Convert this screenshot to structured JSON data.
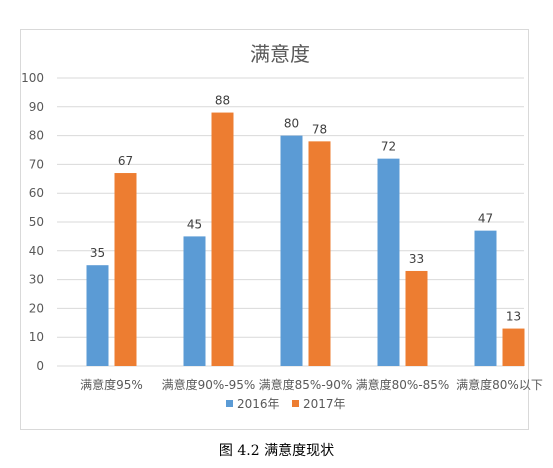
{
  "caption": "图 4.2 满意度现状",
  "colors": {
    "series_2016": "#5b9bd5",
    "series_2017": "#ed7d31",
    "grid": "#d9d9d9",
    "text": "#595959"
  },
  "chart_data": {
    "type": "bar",
    "title": "满意度",
    "categories": [
      "满意度95%",
      "满意度90%-95%",
      "满意度85%-90%",
      "满意度80%-85%",
      "满意度80%以下"
    ],
    "series": [
      {
        "name": "2016年",
        "values": [
          35,
          45,
          80,
          72,
          47
        ]
      },
      {
        "name": "2017年",
        "values": [
          67,
          88,
          78,
          33,
          13
        ]
      }
    ],
    "ylim": [
      0,
      100
    ],
    "yticks": [
      0,
      10,
      20,
      30,
      40,
      50,
      60,
      70,
      80,
      90,
      100
    ],
    "grid": true,
    "legend_position": "bottom"
  }
}
